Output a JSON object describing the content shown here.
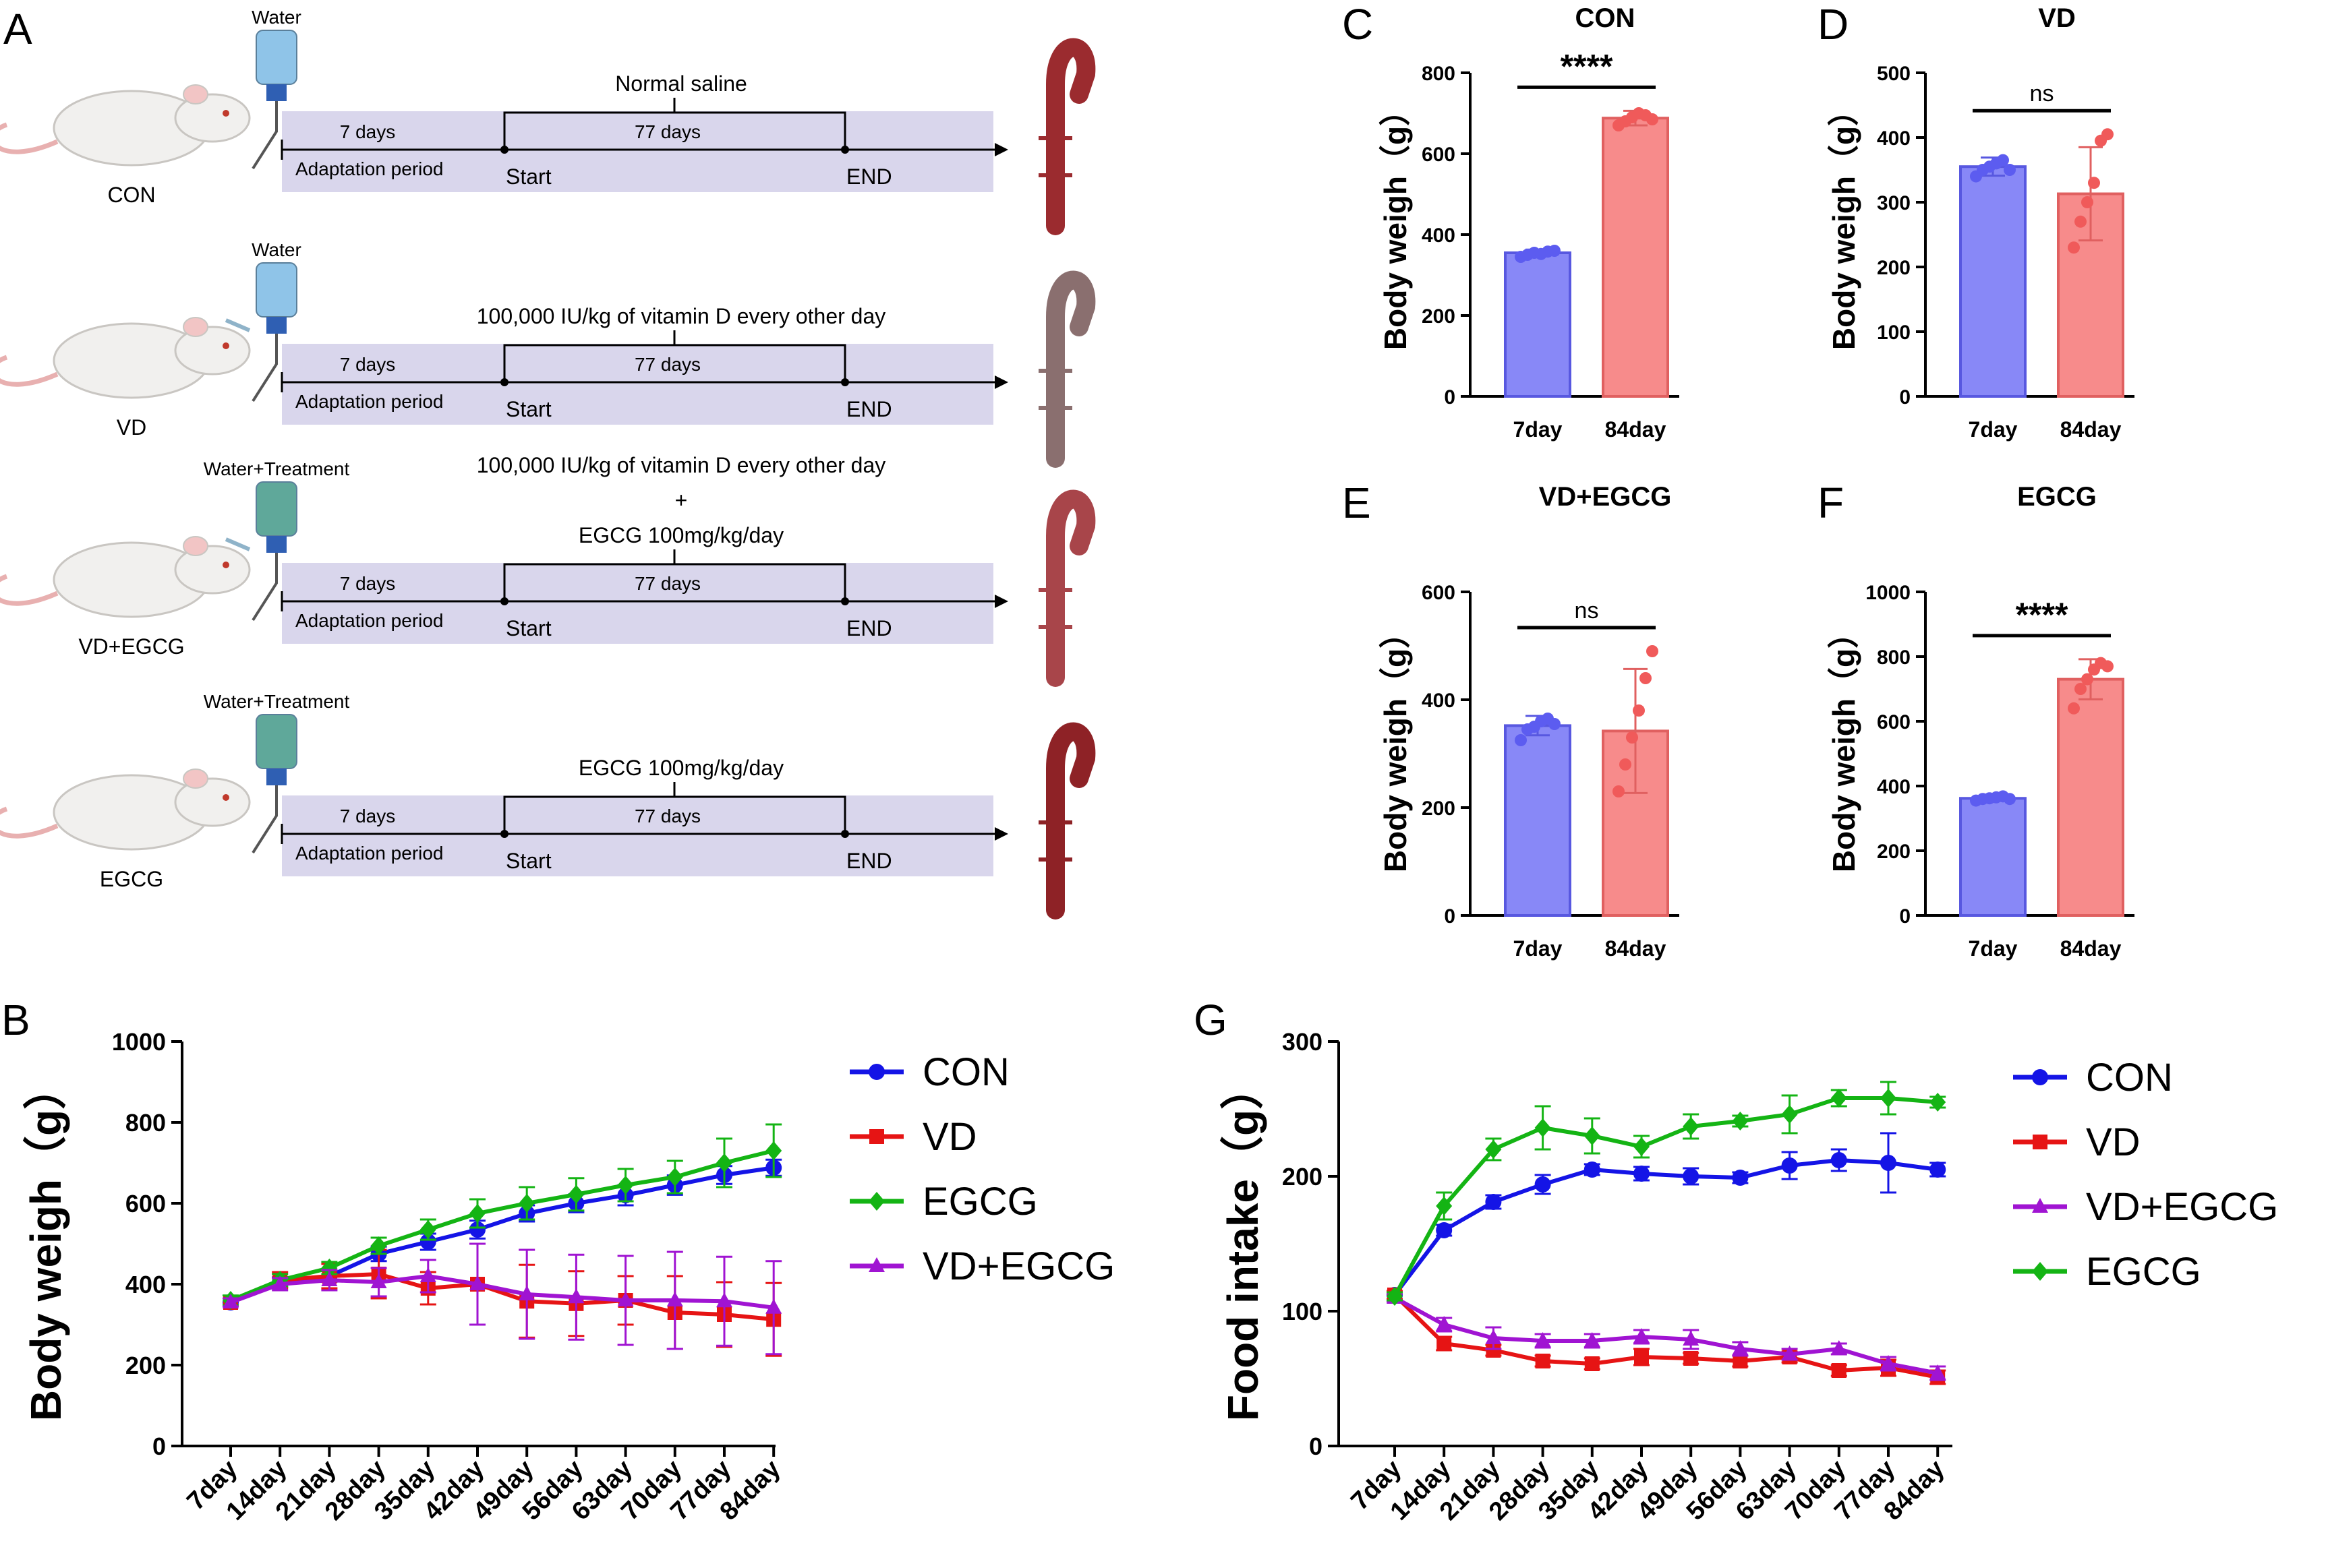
{
  "protocol": {
    "letter": "A",
    "rows": [
      {
        "group": "CON",
        "bottle": "Water",
        "treatment": [
          "Normal saline"
        ],
        "adapt_days": "7 days",
        "adapt_label": "Adaptation period",
        "main_days": "77 days",
        "start": "Start",
        "end": "END",
        "bottle_color": "#8fc4e8",
        "aorta_color": "#9b2b2f",
        "injection": false
      },
      {
        "group": "VD",
        "bottle": "Water",
        "treatment": [
          "100,000 IU/kg of vitamin D every other day"
        ],
        "adapt_days": "7 days",
        "adapt_label": "Adaptation period",
        "main_days": "77 days",
        "start": "Start",
        "end": "END",
        "bottle_color": "#8fc4e8",
        "aorta_color": "#8a6f6f",
        "injection": true
      },
      {
        "group": "VD+EGCG",
        "bottle": "Water+Treatment",
        "treatment": [
          "100,000 IU/kg of vitamin D every other day",
          "+",
          "EGCG 100mg/kg/day"
        ],
        "adapt_days": "7 days",
        "adapt_label": "Adaptation period",
        "main_days": "77 days",
        "start": "Start",
        "end": "END",
        "bottle_color": "#5fa89a",
        "aorta_color": "#a8454a",
        "injection": true
      },
      {
        "group": "EGCG",
        "bottle": "Water+Treatment",
        "treatment": [
          "EGCG 100mg/kg/day"
        ],
        "adapt_days": "7 days",
        "adapt_label": "Adaptation period",
        "main_days": "77 days",
        "start": "Start",
        "end": "END",
        "bottle_color": "#5fa89a",
        "aorta_color": "#8e2226",
        "injection": false
      }
    ]
  },
  "chart_data": [
    {
      "panel": "C",
      "type": "bar",
      "title": "CON",
      "ylabel": "Body weigh（g）",
      "categories": [
        "7day",
        "84day"
      ],
      "values": [
        355,
        688
      ],
      "errors": [
        8,
        18
      ],
      "ylim": [
        0,
        800
      ],
      "yticks": [
        "0",
        "200",
        "400",
        "600",
        "800"
      ],
      "significance": "****",
      "points": [
        [
          345,
          350,
          355,
          352,
          358,
          360
        ],
        [
          670,
          680,
          690,
          700,
          695,
          685
        ]
      ]
    },
    {
      "panel": "D",
      "type": "bar",
      "title": "VD",
      "ylabel": "Body weigh（g）",
      "categories": [
        "7day",
        "84day"
      ],
      "values": [
        355,
        313
      ],
      "errors": [
        14,
        72
      ],
      "ylim": [
        0,
        500
      ],
      "yticks": [
        "0",
        "100",
        "200",
        "300",
        "400",
        "500"
      ],
      "significance": "ns",
      "points": [
        [
          340,
          350,
          355,
          360,
          365,
          350
        ],
        [
          230,
          270,
          300,
          330,
          395,
          405
        ]
      ]
    },
    {
      "panel": "E",
      "type": "bar",
      "title": "VD+EGCG",
      "ylabel": "Body weigh（g）",
      "categories": [
        "7day",
        "84day"
      ],
      "values": [
        352,
        342
      ],
      "errors": [
        18,
        115
      ],
      "ylim": [
        0,
        600
      ],
      "yticks": [
        "0",
        "200",
        "400",
        "600"
      ],
      "significance": "ns",
      "points": [
        [
          325,
          345,
          350,
          360,
          365,
          355
        ],
        [
          230,
          280,
          330,
          380,
          440,
          490
        ]
      ]
    },
    {
      "panel": "F",
      "type": "bar",
      "title": "EGCG",
      "ylabel": "Body weigh（g）",
      "categories": [
        "7day",
        "84day"
      ],
      "values": [
        362,
        730
      ],
      "errors": [
        8,
        62
      ],
      "ylim": [
        0,
        1000
      ],
      "yticks": [
        "0",
        "200",
        "400",
        "600",
        "800",
        "1000"
      ],
      "significance": "****",
      "points": [
        [
          355,
          360,
          362,
          365,
          368,
          360
        ],
        [
          640,
          700,
          730,
          760,
          780,
          770
        ]
      ]
    },
    {
      "panel": "B",
      "type": "line",
      "ylabel": "Body weigh（g）",
      "ylim": [
        0,
        1000
      ],
      "yticks": [
        "0",
        "200",
        "400",
        "600",
        "800",
        "1000"
      ],
      "categories": [
        "7day",
        "14day",
        "21day",
        "28day",
        "35day",
        "42day",
        "49day",
        "56day",
        "63day",
        "70day",
        "77day",
        "84day"
      ],
      "series": [
        {
          "name": "CON",
          "color": "#1414e6",
          "marker": "circle",
          "values": [
            355,
            405,
            420,
            475,
            505,
            535,
            575,
            600,
            620,
            645,
            670,
            688
          ],
          "errors": [
            10,
            12,
            14,
            18,
            20,
            22,
            20,
            22,
            25,
            24,
            22,
            20
          ]
        },
        {
          "name": "VD",
          "color": "#e61414",
          "marker": "square",
          "values": [
            355,
            410,
            420,
            425,
            390,
            400,
            358,
            352,
            360,
            330,
            325,
            313
          ],
          "errors": [
            10,
            20,
            30,
            60,
            40,
            100,
            90,
            80,
            60,
            90,
            80,
            90
          ]
        },
        {
          "name": "EGCG",
          "color": "#14b414",
          "marker": "diamond",
          "values": [
            360,
            410,
            440,
            495,
            535,
            575,
            600,
            622,
            645,
            665,
            700,
            730
          ],
          "errors": [
            12,
            15,
            15,
            20,
            25,
            35,
            40,
            40,
            40,
            40,
            60,
            65
          ]
        },
        {
          "name": "VD+EGCG",
          "color": "#a014d2",
          "marker": "triangle",
          "values": [
            355,
            400,
            410,
            405,
            420,
            400,
            375,
            368,
            360,
            360,
            358,
            342
          ],
          "errors": [
            10,
            15,
            25,
            35,
            40,
            100,
            110,
            105,
            110,
            120,
            110,
            115
          ]
        }
      ]
    },
    {
      "panel": "G",
      "type": "line",
      "ylabel": "Food intake（g）",
      "ylim": [
        0,
        300
      ],
      "yticks": [
        "0",
        "100",
        "200",
        "300"
      ],
      "categories": [
        "7day",
        "14day",
        "21day",
        "28day",
        "35day",
        "42day",
        "49day",
        "56day",
        "63day",
        "70day",
        "77day",
        "84day"
      ],
      "series": [
        {
          "name": "CON",
          "color": "#1414e6",
          "marker": "circle",
          "values": [
            112,
            160,
            181,
            194,
            205,
            202,
            200,
            199,
            208,
            212,
            210,
            205
          ],
          "errors": [
            3,
            4,
            5,
            7,
            4,
            5,
            6,
            4,
            10,
            8,
            22,
            5
          ]
        },
        {
          "name": "VD",
          "color": "#e61414",
          "marker": "square",
          "values": [
            112,
            76,
            71,
            63,
            61,
            66,
            65,
            63,
            66,
            56,
            58,
            51
          ],
          "errors": [
            3,
            5,
            4,
            4,
            4,
            6,
            4,
            4,
            4,
            4,
            6,
            5
          ]
        },
        {
          "name": "VD+EGCG",
          "color": "#a014d2",
          "marker": "triangle",
          "values": [
            110,
            90,
            80,
            78,
            78,
            81,
            79,
            72,
            68,
            72,
            61,
            54
          ],
          "errors": [
            3,
            5,
            8,
            5,
            5,
            5,
            7,
            5,
            4,
            4,
            5,
            5
          ]
        },
        {
          "name": "EGCG",
          "color": "#14b414",
          "marker": "diamond",
          "values": [
            111,
            178,
            220,
            236,
            230,
            222,
            237,
            241,
            246,
            258,
            258,
            255
          ],
          "errors": [
            3,
            10,
            8,
            16,
            13,
            8,
            9,
            4,
            14,
            6,
            12,
            4
          ]
        }
      ]
    }
  ]
}
